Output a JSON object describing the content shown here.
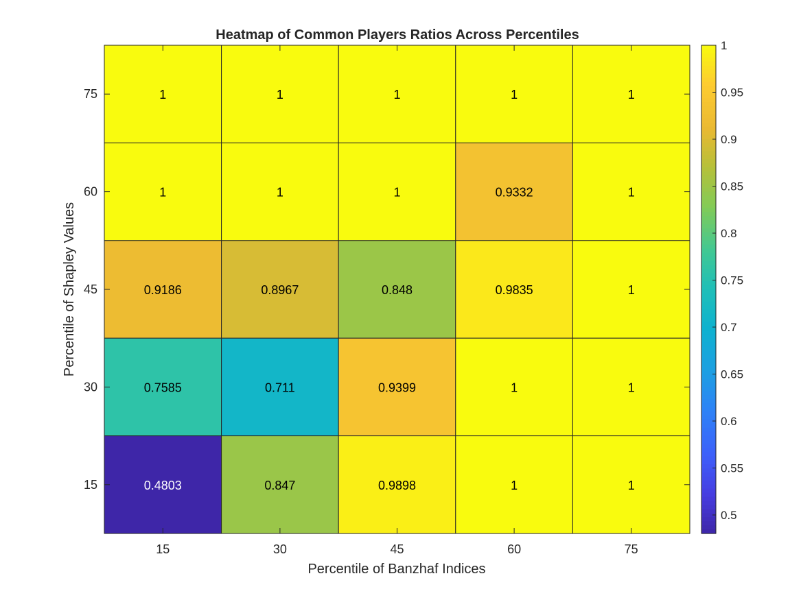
{
  "chart_data": {
    "type": "heatmap",
    "title": "Heatmap of Common Players Ratios Across Percentiles",
    "xlabel": "Percentile of Banzhaf Indices",
    "ylabel": "Percentile of Shapley Values",
    "x_categories": [
      "15",
      "30",
      "45",
      "60",
      "75"
    ],
    "y_categories": [
      "75",
      "60",
      "45",
      "30",
      "15"
    ],
    "values": [
      [
        1,
        1,
        1,
        1,
        1
      ],
      [
        1,
        1,
        1,
        0.9332,
        1
      ],
      [
        0.9186,
        0.8967,
        0.848,
        0.9835,
        1
      ],
      [
        0.7585,
        0.711,
        0.9399,
        1,
        1
      ],
      [
        0.4803,
        0.847,
        0.9898,
        1,
        1
      ]
    ],
    "value_labels": [
      [
        "1",
        "1",
        "1",
        "1",
        "1"
      ],
      [
        "1",
        "1",
        "1",
        "0.9332",
        "1"
      ],
      [
        "0.9186",
        "0.8967",
        "0.848",
        "0.9835",
        "1"
      ],
      [
        "0.7585",
        "0.711",
        "0.9399",
        "1",
        "1"
      ],
      [
        "0.4803",
        "0.847",
        "0.9898",
        "1",
        "1"
      ]
    ],
    "colorbar": {
      "range": [
        0.4803,
        1
      ],
      "ticks": [
        "0.5",
        "0.55",
        "0.6",
        "0.65",
        "0.7",
        "0.75",
        "0.8",
        "0.85",
        "0.9",
        "0.95",
        "1"
      ],
      "colormap": "parula"
    },
    "grid": true
  }
}
